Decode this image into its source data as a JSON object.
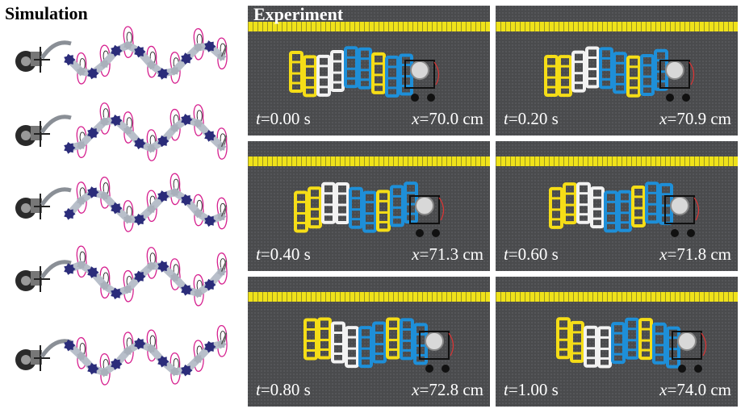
{
  "headers": {
    "simulation": "Simulation",
    "experiment": "Experiment"
  },
  "frames": [
    {
      "t_var": "t",
      "t_val": "=0.00 s",
      "x_var": "x",
      "x_val": "=70.0 cm"
    },
    {
      "t_var": "t",
      "t_val": "=0.20 s",
      "x_var": "x",
      "x_val": "=70.9 cm"
    },
    {
      "t_var": "t",
      "t_val": "=0.40 s",
      "x_var": "x",
      "x_val": "=71.3 cm"
    },
    {
      "t_var": "t",
      "t_val": "=0.60 s",
      "x_var": "x",
      "x_val": "=71.8 cm"
    },
    {
      "t_var": "t",
      "t_val": "=0.80 s",
      "x_var": "x",
      "x_val": "=72.8 cm"
    },
    {
      "t_var": "t",
      "t_val": "=1.00 s",
      "x_var": "x",
      "x_val": "=74.0 cm"
    }
  ],
  "simulation_frame_count": 5,
  "colors": {
    "link": "#b8bfca",
    "joint": "#2b2c7a",
    "contact_curve": "#d6208f",
    "trajectory": "#222222",
    "ground": "#4a4b4d",
    "ruler": "#efe21a",
    "blue_link": "#1e8fd8",
    "yellow_link": "#f5dd17",
    "white_link": "#f2f2f2"
  }
}
